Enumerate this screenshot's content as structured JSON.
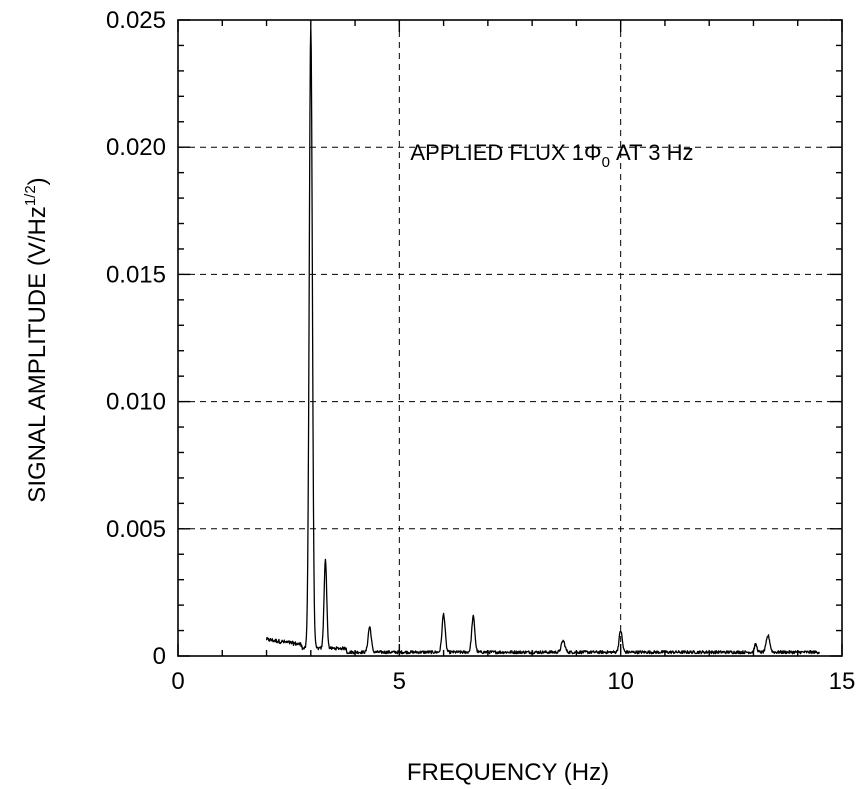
{
  "chart_data": {
    "type": "line",
    "xlabel": "FREQUENCY (Hz)",
    "ylabel_main": "SIGNAL AMPLITUDE (V/Hz",
    "ylabel_sup": "1/2",
    "ylabel_close": ")",
    "annotation": {
      "prefix": "APPLIED FLUX 1",
      "symbol": "Φ",
      "sub": "0",
      "suffix": " AT 3 Hz",
      "x": 5.25,
      "y": 0.0195
    },
    "xlim": [
      0,
      15
    ],
    "ylim": [
      0,
      0.025
    ],
    "x_ticks": [
      0,
      5,
      10,
      15
    ],
    "x_tick_labels": [
      "0",
      "5",
      "10",
      "15"
    ],
    "y_ticks": [
      0,
      0.005,
      0.01,
      0.015,
      0.02,
      0.025
    ],
    "y_tick_labels": [
      "0",
      "0.005",
      "0.010",
      "0.015",
      "0.020",
      "0.025"
    ],
    "grid": true,
    "noise_floor": 0.00015,
    "x_start": 2.0,
    "x_end": 14.5,
    "peaks": [
      {
        "x": 3.0,
        "y": 0.0245,
        "w": 0.035
      },
      {
        "x": 3.33,
        "y": 0.0035,
        "w": 0.03
      },
      {
        "x": 4.33,
        "y": 0.001,
        "w": 0.035
      },
      {
        "x": 6.0,
        "y": 0.0015,
        "w": 0.035
      },
      {
        "x": 6.67,
        "y": 0.0014,
        "w": 0.035
      },
      {
        "x": 8.7,
        "y": 0.00045,
        "w": 0.04
      },
      {
        "x": 10.0,
        "y": 0.00085,
        "w": 0.035
      },
      {
        "x": 13.05,
        "y": 0.0003,
        "w": 0.03
      },
      {
        "x": 13.33,
        "y": 0.00065,
        "w": 0.04
      }
    ],
    "low_region": {
      "x0": 2.0,
      "x1": 2.8,
      "level": 0.00065
    }
  }
}
